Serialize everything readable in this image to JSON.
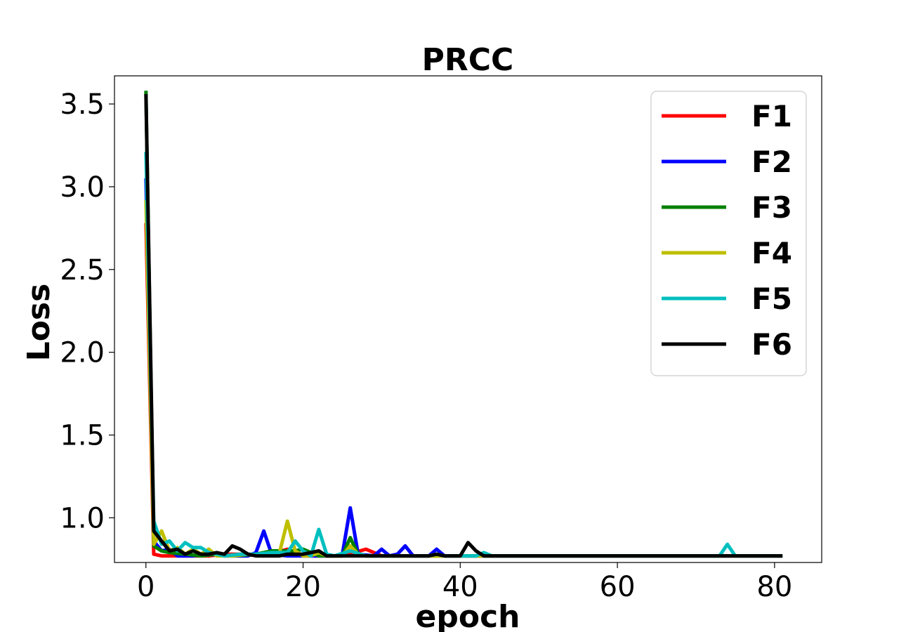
{
  "chart_data": {
    "type": "line",
    "title": "PRCC",
    "xlabel": "epoch",
    "ylabel": "Loss",
    "xlim": [
      -4,
      86
    ],
    "ylim": [
      0.73,
      3.67
    ],
    "xticks": [
      0,
      20,
      40,
      60,
      80
    ],
    "yticks": [
      1.0,
      1.5,
      2.0,
      2.5,
      3.0,
      3.5
    ],
    "xtick_labels": [
      "0",
      "20",
      "40",
      "60",
      "80"
    ],
    "ytick_labels": [
      "1.0",
      "1.5",
      "2.0",
      "2.5",
      "3.0",
      "3.5"
    ],
    "grid": false,
    "legend_position": "top-right",
    "series": [
      {
        "name": "F1",
        "color": "#ff0000",
        "points": [
          [
            0,
            2.78
          ],
          [
            1,
            0.78
          ],
          [
            2,
            0.77
          ],
          [
            3,
            0.77
          ],
          [
            5,
            0.77
          ],
          [
            8,
            0.77
          ],
          [
            10,
            0.78
          ],
          [
            12,
            0.78
          ],
          [
            15,
            0.77
          ],
          [
            18,
            0.81
          ],
          [
            20,
            0.77
          ],
          [
            25,
            0.77
          ],
          [
            28,
            0.81
          ],
          [
            30,
            0.77
          ],
          [
            40,
            0.77
          ],
          [
            81,
            0.77
          ]
        ]
      },
      {
        "name": "F2",
        "color": "#0000ff",
        "points": [
          [
            0,
            3.05
          ],
          [
            1,
            0.86
          ],
          [
            2,
            0.8
          ],
          [
            3,
            0.81
          ],
          [
            4,
            0.77
          ],
          [
            6,
            0.77
          ],
          [
            8,
            0.78
          ],
          [
            10,
            0.77
          ],
          [
            13,
            0.77
          ],
          [
            14,
            0.79
          ],
          [
            15,
            0.92
          ],
          [
            16,
            0.78
          ],
          [
            18,
            0.77
          ],
          [
            20,
            0.77
          ],
          [
            22,
            0.77
          ],
          [
            24,
            0.77
          ],
          [
            25,
            0.78
          ],
          [
            26,
            1.06
          ],
          [
            27,
            0.78
          ],
          [
            29,
            0.77
          ],
          [
            30,
            0.81
          ],
          [
            31,
            0.77
          ],
          [
            32,
            0.78
          ],
          [
            33,
            0.83
          ],
          [
            34,
            0.77
          ],
          [
            36,
            0.77
          ],
          [
            37,
            0.81
          ],
          [
            38,
            0.77
          ],
          [
            40,
            0.77
          ],
          [
            42,
            0.77
          ],
          [
            81,
            0.77
          ]
        ]
      },
      {
        "name": "F3",
        "color": "#008000",
        "points": [
          [
            0,
            3.58
          ],
          [
            1,
            0.83
          ],
          [
            2,
            0.8
          ],
          [
            3,
            0.79
          ],
          [
            5,
            0.78
          ],
          [
            7,
            0.77
          ],
          [
            9,
            0.78
          ],
          [
            11,
            0.77
          ],
          [
            14,
            0.78
          ],
          [
            16,
            0.8
          ],
          [
            17,
            0.8
          ],
          [
            19,
            0.8
          ],
          [
            20,
            0.81
          ],
          [
            22,
            0.77
          ],
          [
            25,
            0.77
          ],
          [
            26,
            0.88
          ],
          [
            27,
            0.78
          ],
          [
            28,
            0.77
          ],
          [
            30,
            0.77
          ],
          [
            35,
            0.77
          ],
          [
            38,
            0.77
          ],
          [
            40,
            0.77
          ],
          [
            81,
            0.77
          ]
        ]
      },
      {
        "name": "F4",
        "color": "#bfbf00",
        "points": [
          [
            0,
            2.92
          ],
          [
            1,
            0.84
          ],
          [
            2,
            0.92
          ],
          [
            3,
            0.8
          ],
          [
            4,
            0.82
          ],
          [
            5,
            0.78
          ],
          [
            6,
            0.81
          ],
          [
            7,
            0.78
          ],
          [
            8,
            0.81
          ],
          [
            9,
            0.77
          ],
          [
            11,
            0.77
          ],
          [
            13,
            0.78
          ],
          [
            15,
            0.77
          ],
          [
            17,
            0.79
          ],
          [
            18,
            0.98
          ],
          [
            19,
            0.8
          ],
          [
            20,
            0.77
          ],
          [
            21,
            0.77
          ],
          [
            22,
            0.79
          ],
          [
            23,
            0.77
          ],
          [
            25,
            0.77
          ],
          [
            26,
            0.83
          ],
          [
            27,
            0.78
          ],
          [
            28,
            0.77
          ],
          [
            30,
            0.77
          ],
          [
            40,
            0.77
          ],
          [
            81,
            0.77
          ]
        ]
      },
      {
        "name": "F5",
        "color": "#00bfbf",
        "points": [
          [
            0,
            3.21
          ],
          [
            1,
            0.98
          ],
          [
            2,
            0.84
          ],
          [
            3,
            0.86
          ],
          [
            4,
            0.8
          ],
          [
            5,
            0.85
          ],
          [
            6,
            0.82
          ],
          [
            7,
            0.82
          ],
          [
            8,
            0.79
          ],
          [
            10,
            0.77
          ],
          [
            12,
            0.78
          ],
          [
            14,
            0.78
          ],
          [
            16,
            0.79
          ],
          [
            17,
            0.79
          ],
          [
            18,
            0.79
          ],
          [
            19,
            0.86
          ],
          [
            20,
            0.8
          ],
          [
            21,
            0.77
          ],
          [
            22,
            0.93
          ],
          [
            23,
            0.78
          ],
          [
            24,
            0.77
          ],
          [
            26,
            0.8
          ],
          [
            28,
            0.77
          ],
          [
            30,
            0.77
          ],
          [
            36,
            0.77
          ],
          [
            37,
            0.78
          ],
          [
            38,
            0.77
          ],
          [
            40,
            0.77
          ],
          [
            42,
            0.77
          ],
          [
            43,
            0.79
          ],
          [
            44,
            0.77
          ],
          [
            73,
            0.77
          ],
          [
            74,
            0.84
          ],
          [
            75,
            0.77
          ],
          [
            81,
            0.77
          ]
        ]
      },
      {
        "name": "F6",
        "color": "#000000",
        "points": [
          [
            0,
            3.56
          ],
          [
            1,
            0.92
          ],
          [
            2,
            0.86
          ],
          [
            3,
            0.8
          ],
          [
            4,
            0.81
          ],
          [
            5,
            0.78
          ],
          [
            6,
            0.8
          ],
          [
            7,
            0.78
          ],
          [
            8,
            0.78
          ],
          [
            9,
            0.79
          ],
          [
            10,
            0.78
          ],
          [
            11,
            0.83
          ],
          [
            12,
            0.81
          ],
          [
            13,
            0.78
          ],
          [
            14,
            0.77
          ],
          [
            16,
            0.77
          ],
          [
            17,
            0.77
          ],
          [
            18,
            0.78
          ],
          [
            19,
            0.78
          ],
          [
            20,
            0.78
          ],
          [
            21,
            0.79
          ],
          [
            22,
            0.8
          ],
          [
            23,
            0.77
          ],
          [
            25,
            0.77
          ],
          [
            27,
            0.77
          ],
          [
            29,
            0.77
          ],
          [
            33,
            0.77
          ],
          [
            36,
            0.77
          ],
          [
            37,
            0.78
          ],
          [
            38,
            0.77
          ],
          [
            40,
            0.77
          ],
          [
            41,
            0.85
          ],
          [
            42,
            0.8
          ],
          [
            43,
            0.77
          ],
          [
            45,
            0.77
          ],
          [
            81,
            0.77
          ]
        ]
      }
    ]
  }
}
